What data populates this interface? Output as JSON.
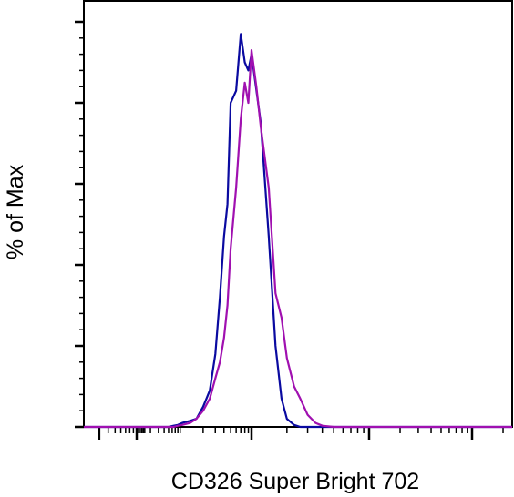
{
  "chart_data": {
    "type": "line",
    "title": "",
    "xlabel": "CD326 Super Bright 702",
    "ylabel": "% of Max",
    "x_scale": "log",
    "tick_labels_shown": false,
    "grid": false,
    "legend": "none",
    "ylim": [
      0,
      100
    ],
    "series": [
      {
        "color": "#0a0aa0",
        "x": [
          0.02,
          0.03,
          0.04,
          0.05,
          0.08,
          0.12,
          0.2,
          0.35,
          0.5,
          0.65,
          0.8,
          1.0,
          1.3,
          1.6,
          2.0,
          2.5,
          3.0,
          3.5,
          4.0,
          4.5,
          5.0,
          6.0,
          7.0,
          8.0,
          9.0,
          10.0,
          12.0,
          14.0,
          16.0,
          18.0,
          20.0,
          23.0,
          26.0,
          30.0,
          35.0,
          40.0,
          50.0,
          60.0,
          80.0,
          100.0,
          130.0,
          160.0,
          200.0,
          250.0,
          300.0,
          350.0,
          400.0
        ],
        "y": [
          0,
          0,
          0,
          0,
          0,
          0,
          0,
          0,
          0,
          0.3,
          0.5,
          1.0,
          1.5,
          2.0,
          5.0,
          9.0,
          18.0,
          32.0,
          47.0,
          55.0,
          80.0,
          83.0,
          97.0,
          90.0,
          88.0,
          92.0,
          75.0,
          47.0,
          20.0,
          7.0,
          2.0,
          0.5,
          0,
          0,
          0,
          0,
          0,
          0,
          0,
          0,
          0,
          0,
          0,
          0,
          0,
          0,
          0
        ]
      },
      {
        "color": "#a010b0",
        "x": [
          0.02,
          0.03,
          0.04,
          0.05,
          0.08,
          0.12,
          0.2,
          0.35,
          0.5,
          0.65,
          0.8,
          1.0,
          1.3,
          1.6,
          2.0,
          2.5,
          3.0,
          3.5,
          4.0,
          4.5,
          5.0,
          6.0,
          7.0,
          8.0,
          9.0,
          10.0,
          11.0,
          12.0,
          14.0,
          16.0,
          18.0,
          20.0,
          23.0,
          26.0,
          30.0,
          35.0,
          40.0,
          50.0,
          60.0,
          80.0,
          100.0,
          130.0,
          160.0,
          200.0,
          250.0,
          300.0,
          350.0,
          400.0
        ],
        "y": [
          0,
          0,
          0,
          0,
          0,
          0,
          0,
          0,
          0,
          0,
          0.3,
          0.5,
          1.0,
          2.0,
          4.0,
          7.0,
          12.0,
          16.0,
          22.0,
          30.0,
          44.0,
          59.0,
          76.0,
          85.0,
          80.0,
          93.0,
          84.0,
          74.0,
          59.0,
          33.0,
          27.0,
          17.0,
          10.0,
          7.0,
          3.0,
          1.0,
          0.3,
          0,
          0,
          0,
          0,
          0,
          0,
          0,
          0,
          0,
          0,
          0
        ]
      }
    ]
  }
}
